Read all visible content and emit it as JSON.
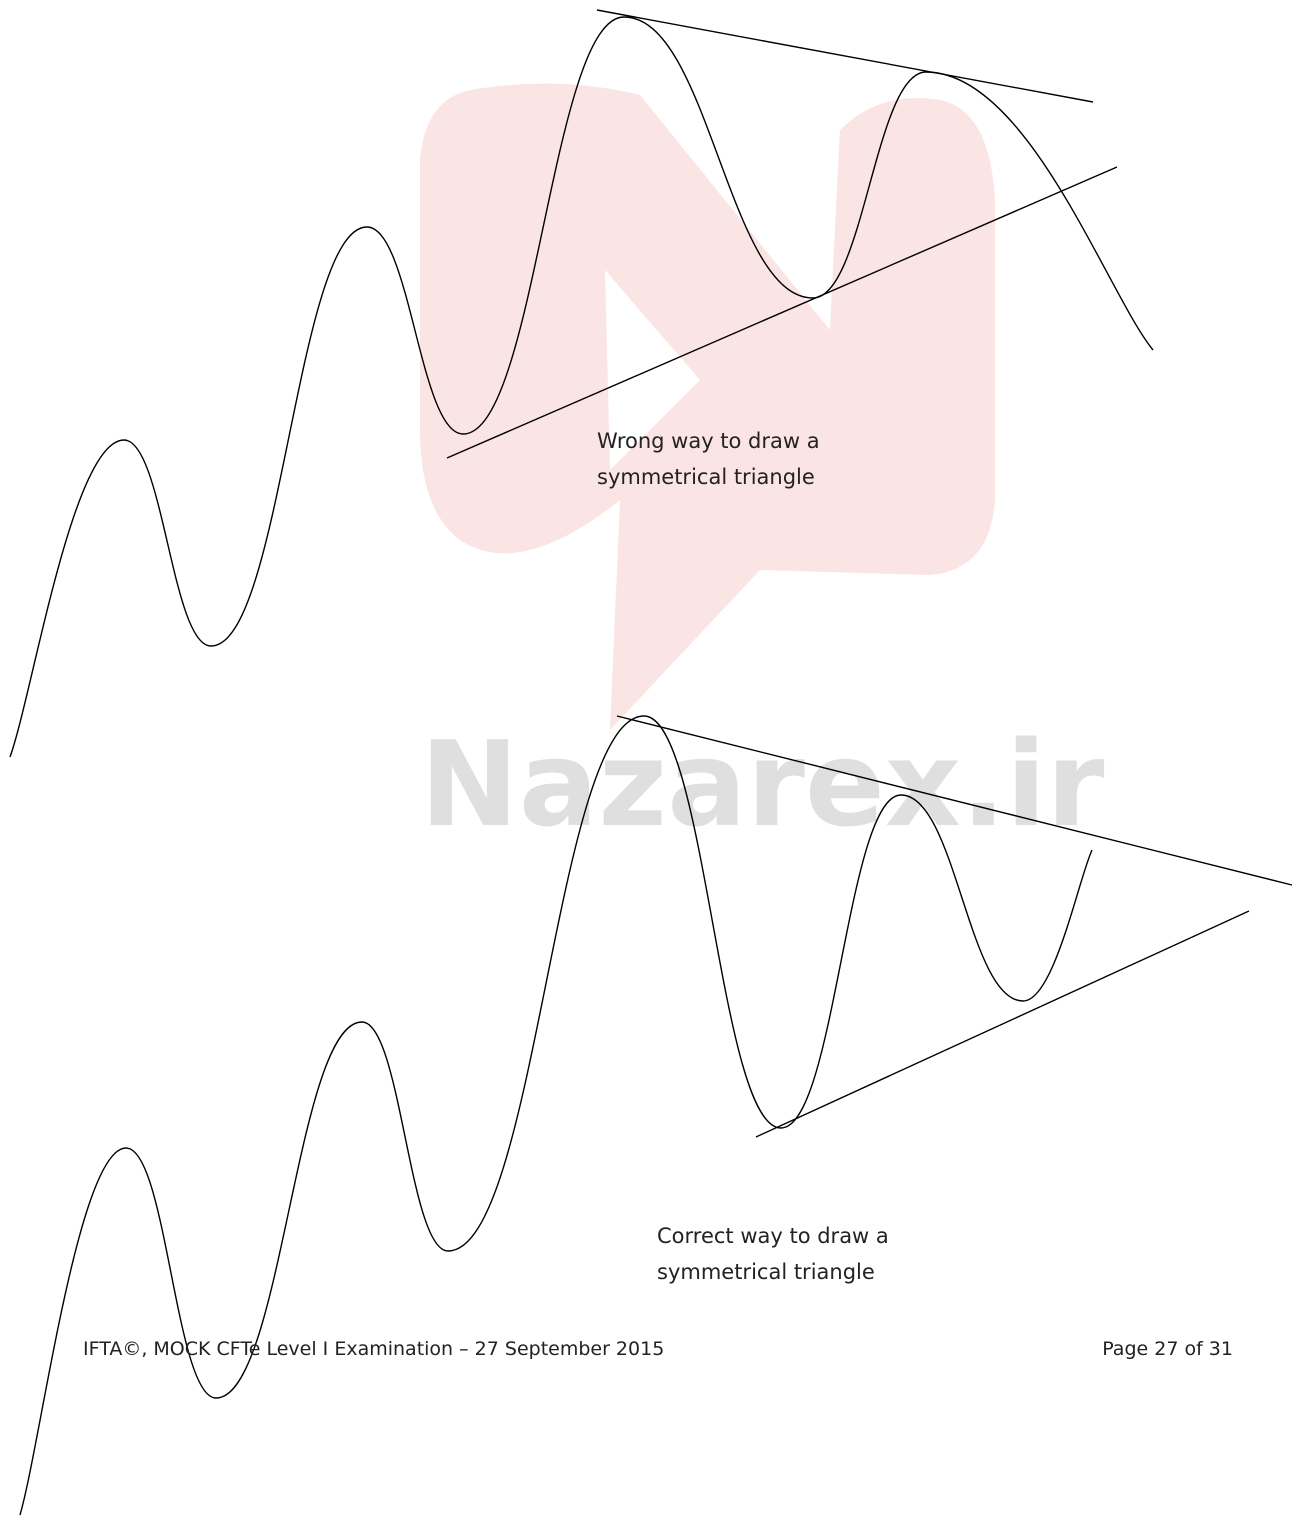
{
  "watermark": "Nazarex.ir",
  "figures": [
    {
      "caption": [
        "Wrong way to draw a",
        "symmetrical triangle"
      ]
    },
    {
      "caption": [
        "Correct way to draw a",
        "symmetrical triangle"
      ]
    }
  ],
  "footer": {
    "left": "IFTA©, MOCK CFTe Level I Examination – 27 September 2015",
    "right": "Page 27 of 31"
  }
}
